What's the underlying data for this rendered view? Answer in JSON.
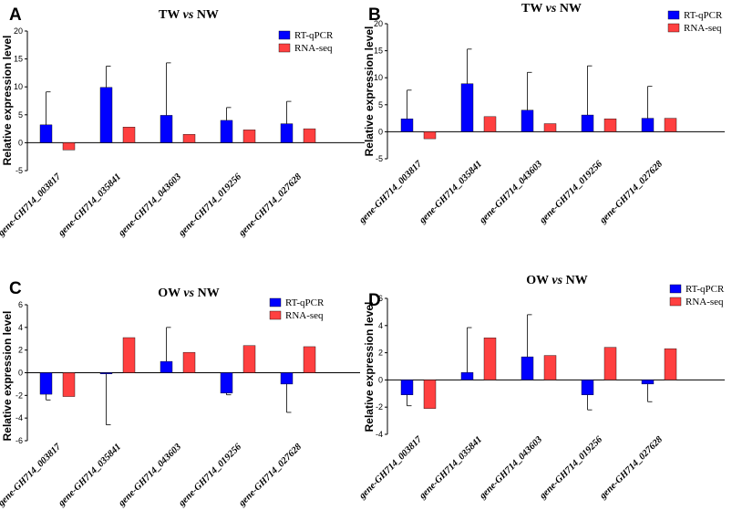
{
  "chart_data": [
    {
      "type": "bar",
      "panel": "A",
      "title_parts": [
        "TW ",
        "vs",
        " NW"
      ],
      "ylabel": "Relative expression level",
      "ylim": [
        -5,
        20
      ],
      "yticks": [
        -5,
        0,
        5,
        10,
        15,
        20
      ],
      "categories": [
        "gene-GH714_003817",
        "gene-GH714_035841",
        "gene-GH714_043603",
        "gene-GH714_019256",
        "gene-GH714_027628"
      ],
      "series": [
        {
          "name": "RT-qPCR",
          "color": "#0000ff",
          "values": [
            3.2,
            9.9,
            4.9,
            4.0,
            3.4
          ],
          "errors": [
            5.9,
            3.8,
            9.4,
            2.3,
            4.0
          ]
        },
        {
          "name": "RNA-seq",
          "color": "#ff4040",
          "values": [
            -1.3,
            2.8,
            1.5,
            2.3,
            2.5
          ],
          "errors": [
            0,
            0,
            0,
            0,
            0
          ]
        }
      ]
    },
    {
      "type": "bar",
      "panel": "B",
      "title_parts": [
        "TW ",
        "vs",
        " NW"
      ],
      "ylabel": "Relative expression level",
      "ylim": [
        -5,
        20
      ],
      "yticks": [
        -5,
        0,
        5,
        10,
        15,
        20
      ],
      "categories": [
        "gene-GH714_003817",
        "gene-GH714_035841",
        "gene-GH714_043603",
        "gene-GH714_019256",
        "gene-GH714_027628"
      ],
      "series": [
        {
          "name": "RT-qPCR",
          "color": "#0000ff",
          "values": [
            2.4,
            8.9,
            4.0,
            3.1,
            2.5
          ],
          "errors": [
            5.3,
            6.4,
            7.0,
            9.1,
            5.9
          ]
        },
        {
          "name": "RNA-seq",
          "color": "#ff4040",
          "values": [
            -1.3,
            2.8,
            1.5,
            2.4,
            2.5
          ],
          "errors": [
            0,
            0,
            0,
            0,
            0
          ]
        }
      ]
    },
    {
      "type": "bar",
      "panel": "C",
      "title_parts": [
        "OW ",
        "vs",
        " NW"
      ],
      "ylabel": "Relative expression level",
      "ylim": [
        -6,
        6
      ],
      "yticks": [
        -6,
        -4,
        -2,
        0,
        2,
        4,
        6
      ],
      "categories": [
        "gene-GH714_003817",
        "gene-GH714_035841",
        "gene-GH714_043603",
        "gene-GH714_019256",
        "gene-GH714_027628"
      ],
      "series": [
        {
          "name": "RT-qPCR",
          "color": "#0000ff",
          "values": [
            -1.9,
            -0.1,
            1.0,
            -1.8,
            -1.0
          ],
          "errors": [
            0.5,
            4.5,
            3.0,
            0.15,
            2.5
          ]
        },
        {
          "name": "RNA-seq",
          "color": "#ff4040",
          "values": [
            -2.1,
            3.1,
            1.8,
            2.4,
            2.3
          ],
          "errors": [
            0,
            0,
            0,
            0,
            0
          ]
        }
      ]
    },
    {
      "type": "bar",
      "panel": "D",
      "title_parts": [
        "OW ",
        "vs",
        " NW"
      ],
      "ylabel": "Relative expression level",
      "ylim": [
        -4,
        6
      ],
      "yticks": [
        -4,
        -2,
        0,
        2,
        4,
        6
      ],
      "categories": [
        "gene-GH714_003817",
        "gene-GH714_035841",
        "gene-GH714_043603",
        "gene-GH714_019256",
        "gene-GH714_027628"
      ],
      "series": [
        {
          "name": "RT-qPCR",
          "color": "#0000ff",
          "values": [
            -1.1,
            0.55,
            1.7,
            -1.1,
            -0.3
          ],
          "errors": [
            0.8,
            3.3,
            3.1,
            1.1,
            1.3
          ]
        },
        {
          "name": "RNA-seq",
          "color": "#ff4040",
          "values": [
            -2.1,
            3.1,
            1.8,
            2.4,
            2.3
          ],
          "errors": [
            0,
            0,
            0,
            0,
            0
          ]
        }
      ]
    }
  ]
}
